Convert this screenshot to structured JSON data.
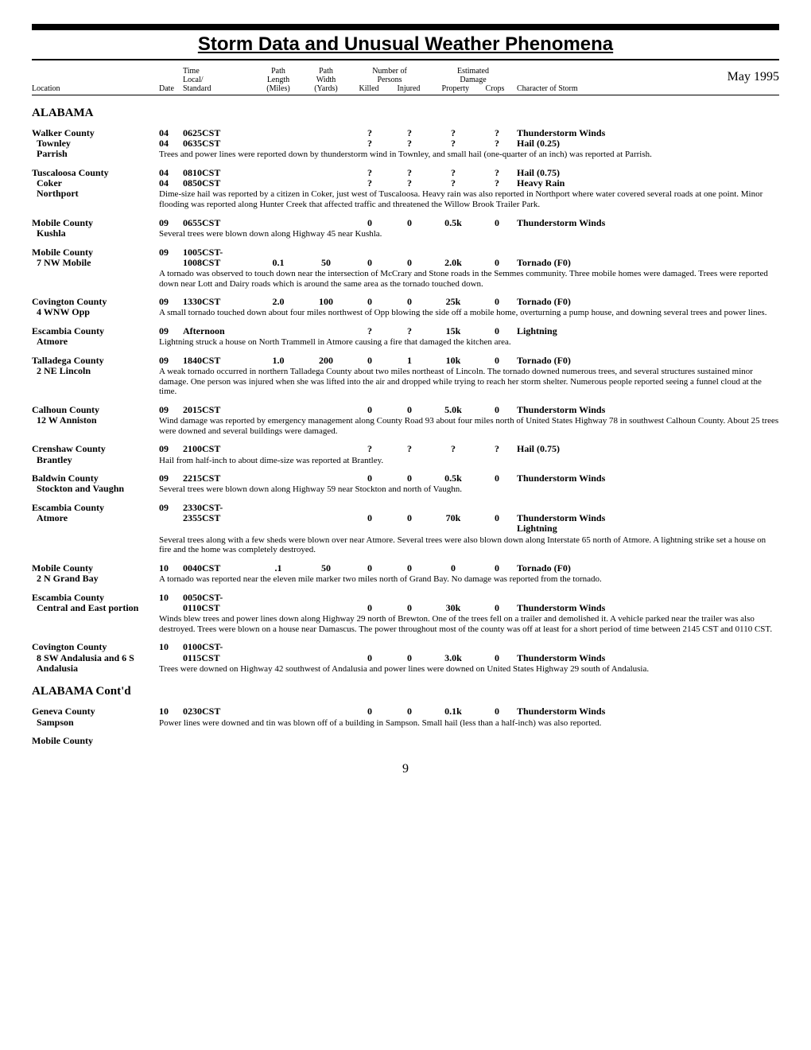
{
  "title": "Storm Data and Unusual Weather Phenomena",
  "month": "May 1995",
  "page": "9",
  "headers": {
    "location": "Location",
    "date": "Date",
    "time": "Time\nLocal/\nStandard",
    "plen": "Path\nLength\n(Miles)",
    "pwid": "Path\nWidth\n(Yards)",
    "persons": "Number of\nPersons",
    "killed": "Killed",
    "injured": "Injured",
    "damage": "Estimated\nDamage",
    "property": "Property",
    "crops": "Crops",
    "char": "Character of Storm"
  },
  "state": "ALABAMA",
  "state_cont": "ALABAMA Cont'd",
  "entries": [
    {
      "county": "Walker County",
      "locs": [
        "Townley",
        "Parrish"
      ],
      "rows": [
        {
          "date": "04",
          "time": "0625CST",
          "plen": "",
          "pwid": "",
          "k": "?",
          "i": "?",
          "p": "?",
          "c": "?",
          "char": "Thunderstorm Winds"
        },
        {
          "date": "04",
          "time": "0635CST",
          "plen": "",
          "pwid": "",
          "k": "?",
          "i": "?",
          "p": "?",
          "c": "?",
          "char": "Hail (0.25)"
        }
      ],
      "narr": "Trees and power lines were reported down by thunderstorm wind in Townley, and small hail (one-quarter of an inch) was reported at Parrish."
    },
    {
      "county": "Tuscaloosa County",
      "locs": [
        "Coker",
        "Northport"
      ],
      "rows": [
        {
          "date": "04",
          "time": "0810CST",
          "plen": "",
          "pwid": "",
          "k": "?",
          "i": "?",
          "p": "?",
          "c": "?",
          "char": "Hail (0.75)"
        },
        {
          "date": "04",
          "time": "0850CST",
          "plen": "",
          "pwid": "",
          "k": "?",
          "i": "?",
          "p": "?",
          "c": "?",
          "char": "Heavy Rain"
        }
      ],
      "narr": "Dime-size hail was reported by a citizen in Coker, just west of Tuscaloosa. Heavy rain was also reported in Northport where water covered several roads at one point. Minor flooding was reported along Hunter Creek that affected traffic and threatened the Willow Brook Trailer Park."
    },
    {
      "county": "Mobile County",
      "locs": [
        "Kushla"
      ],
      "rows": [
        {
          "date": "09",
          "time": "0655CST",
          "plen": "",
          "pwid": "",
          "k": "0",
          "i": "0",
          "p": "0.5k",
          "c": "0",
          "char": "Thunderstorm Winds"
        }
      ],
      "narr": "Several trees were blown down along Highway 45 near Kushla."
    },
    {
      "county": "Mobile County",
      "locs": [
        "7 NW Mobile"
      ],
      "rows": [
        {
          "date": "09",
          "time": "1005CST-",
          "plen": "",
          "pwid": "",
          "k": "",
          "i": "",
          "p": "",
          "c": "",
          "char": ""
        },
        {
          "date": "",
          "time": "1008CST",
          "plen": "0.1",
          "pwid": "50",
          "k": "0",
          "i": "0",
          "p": "2.0k",
          "c": "0",
          "char": "Tornado (F0)"
        }
      ],
      "narr": "A tornado was observed to touch down near the intersection of McCrary and Stone roads in the Semmes community. Three mobile homes were damaged. Trees were reported down near Lott and Dairy roads which is around the same area as the tornado touched down."
    },
    {
      "county": "Covington County",
      "locs": [
        "4 WNW Opp"
      ],
      "rows": [
        {
          "date": "09",
          "time": "1330CST",
          "plen": "2.0",
          "pwid": "100",
          "k": "0",
          "i": "0",
          "p": "25k",
          "c": "0",
          "char": "Tornado (F0)"
        }
      ],
      "narr": "A small tornado touched down about four miles northwest of Opp blowing the side off a mobile home, overturning a pump house, and downing several trees and power lines."
    },
    {
      "county": "Escambia County",
      "locs": [
        "Atmore"
      ],
      "rows": [
        {
          "date": "09",
          "time": "Afternoon",
          "plen": "",
          "pwid": "",
          "k": "?",
          "i": "?",
          "p": "15k",
          "c": "0",
          "char": "Lightning"
        }
      ],
      "narr": "Lightning struck a house on North Trammell in Atmore causing a fire that damaged the kitchen area."
    },
    {
      "county": "Talladega County",
      "locs": [
        "2 NE Lincoln"
      ],
      "rows": [
        {
          "date": "09",
          "time": "1840CST",
          "plen": "1.0",
          "pwid": "200",
          "k": "0",
          "i": "1",
          "p": "10k",
          "c": "0",
          "char": "Tornado (F0)"
        }
      ],
      "narr": "A weak tornado occurred in northern Talladega County about two miles northeast of Lincoln. The tornado downed numerous trees, and several structures sustained minor damage. One person was injured when she was lifted into the air and dropped while trying to reach her storm shelter. Numerous people reported seeing a funnel cloud at the time."
    },
    {
      "county": "Calhoun County",
      "locs": [
        "12 W Anniston"
      ],
      "rows": [
        {
          "date": "09",
          "time": "2015CST",
          "plen": "",
          "pwid": "",
          "k": "0",
          "i": "0",
          "p": "5.0k",
          "c": "0",
          "char": "Thunderstorm Winds"
        }
      ],
      "narr": "Wind damage was reported by emergency management along County Road 93 about four miles north of United States Highway 78 in southwest Calhoun County. About 25 trees were downed and several buildings were damaged."
    },
    {
      "county": "Crenshaw County",
      "locs": [
        "Brantley"
      ],
      "rows": [
        {
          "date": "09",
          "time": "2100CST",
          "plen": "",
          "pwid": "",
          "k": "?",
          "i": "?",
          "p": "?",
          "c": "?",
          "char": "Hail (0.75)"
        }
      ],
      "narr": "Hail from half-inch to about dime-size was reported at Brantley."
    },
    {
      "county": "Baldwin County",
      "locs": [
        "Stockton and Vaughn"
      ],
      "rows": [
        {
          "date": "09",
          "time": "2215CST",
          "plen": "",
          "pwid": "",
          "k": "0",
          "i": "0",
          "p": "0.5k",
          "c": "0",
          "char": "Thunderstorm Winds"
        }
      ],
      "narr": "Several trees were blown down along Highway 59 near Stockton and north of Vaughn."
    },
    {
      "county": "Escambia County",
      "locs": [
        "Atmore"
      ],
      "rows": [
        {
          "date": "09",
          "time": "2330CST-",
          "plen": "",
          "pwid": "",
          "k": "",
          "i": "",
          "p": "",
          "c": "",
          "char": ""
        },
        {
          "date": "",
          "time": "2355CST",
          "plen": "",
          "pwid": "",
          "k": "0",
          "i": "0",
          "p": "70k",
          "c": "0",
          "char": "Thunderstorm Winds"
        }
      ],
      "extra_char": "Lightning",
      "narr": "Several trees along with a few sheds were blown over near Atmore. Several trees were also blown down along Interstate 65 north of Atmore. A lightning strike set a house on fire and the home was completely destroyed."
    },
    {
      "county": "Mobile County",
      "locs": [
        "2 N Grand Bay"
      ],
      "rows": [
        {
          "date": "10",
          "time": "0040CST",
          "plen": ".1",
          "pwid": "50",
          "k": "0",
          "i": "0",
          "p": "0",
          "c": "0",
          "char": "Tornado (F0)"
        }
      ],
      "narr": "A tornado was reported near the eleven mile marker two miles north of Grand Bay. No damage was reported from the tornado."
    },
    {
      "county": "Escambia County",
      "locs": [
        "Central and East portion"
      ],
      "rows": [
        {
          "date": "10",
          "time": "0050CST-",
          "plen": "",
          "pwid": "",
          "k": "",
          "i": "",
          "p": "",
          "c": "",
          "char": ""
        },
        {
          "date": "",
          "time": "0110CST",
          "plen": "",
          "pwid": "",
          "k": "0",
          "i": "0",
          "p": "30k",
          "c": "0",
          "char": "Thunderstorm Winds"
        }
      ],
      "narr": "Winds blew trees and power lines down along Highway 29 north of Brewton. One of the trees fell on a trailer and demolished it. A vehicle parked near the trailer was also destroyed. Trees were blown on a house near Damascus. The power throughout most of the county was off at least for a short period of time between 2145 CST and 0110 CST."
    },
    {
      "county": "Covington County",
      "locs": [
        "8 SW Andalusia and 6 S Andalusia"
      ],
      "rows": [
        {
          "date": "10",
          "time": "0100CST-",
          "plen": "",
          "pwid": "",
          "k": "",
          "i": "",
          "p": "",
          "c": "",
          "char": ""
        },
        {
          "date": "",
          "time": "0115CST",
          "plen": "",
          "pwid": "",
          "k": "0",
          "i": "0",
          "p": "3.0k",
          "c": "0",
          "char": "Thunderstorm Winds"
        }
      ],
      "narr": "Trees were downed on Highway 42 southwest of Andalusia and power lines were downed on United States Highway 29 south of Andalusia."
    }
  ],
  "cont_entries": [
    {
      "county": "Geneva County",
      "locs": [
        "Sampson"
      ],
      "rows": [
        {
          "date": "10",
          "time": "0230CST",
          "plen": "",
          "pwid": "",
          "k": "0",
          "i": "0",
          "p": "0.1k",
          "c": "0",
          "char": "Thunderstorm Winds"
        }
      ],
      "narr": "Power lines were downed and tin was blown off of a building in Sampson. Small hail (less than a half-inch) was also reported."
    },
    {
      "county": "Mobile County",
      "locs": [],
      "rows": [],
      "narr": ""
    }
  ]
}
